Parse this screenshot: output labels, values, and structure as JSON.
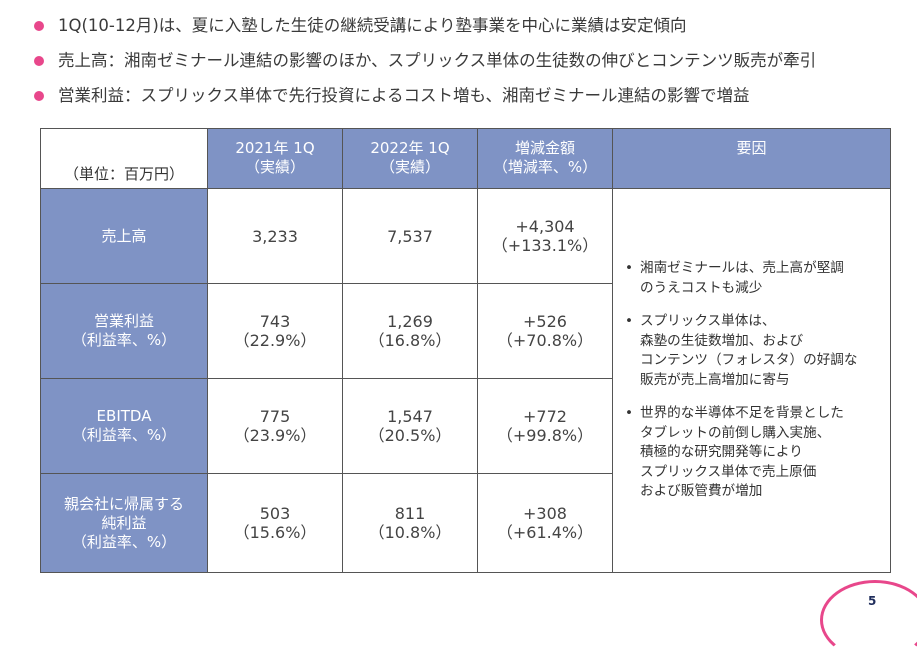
{
  "bullets": [
    "1Q(10-12月)は、夏に入塾した生徒の継続受講により塾事業を中心に業績は安定傾向",
    "売上高：湘南ゼミナール連結の影響のほか、スプリックス単体の生徒数の伸びとコンテンツ販売が牽引",
    "営業利益：スプリックス単体で先行投資によるコスト増も、湘南ゼミナール連結の影響で増益"
  ],
  "table": {
    "unit": "（単位：百万円）",
    "headers": {
      "col1_line1": "2021年 1Q",
      "col1_line2": "（実績）",
      "col2_line1": "2022年 1Q",
      "col2_line2": "（実績）",
      "col3_line1": "増減金額",
      "col3_line2": "（増減率、%）",
      "col4": "要因"
    },
    "rows": [
      {
        "label1": "売上高",
        "label2": "",
        "label3": "",
        "v2021": "3,233",
        "v2021_rate": "",
        "v2022": "7,537",
        "v2022_rate": "",
        "diff": "+4,304",
        "diff_rate": "（+133.1%）"
      },
      {
        "label1": "営業利益",
        "label2": "（利益率、%）",
        "label3": "",
        "v2021": "743",
        "v2021_rate": "（22.9%）",
        "v2022": "1,269",
        "v2022_rate": "（16.8%）",
        "diff": "+526",
        "diff_rate": "（+70.8%）"
      },
      {
        "label1": "EBITDA",
        "label2": "（利益率、%）",
        "label3": "",
        "v2021": "775",
        "v2021_rate": "（23.9%）",
        "v2022": "1,547",
        "v2022_rate": "（20.5%）",
        "diff": "+772",
        "diff_rate": "（+99.8%）"
      },
      {
        "label1": "親会社に帰属する",
        "label2": "純利益",
        "label3": "（利益率、%）",
        "v2021": "503",
        "v2021_rate": "（15.6%）",
        "v2022": "811",
        "v2022_rate": "（10.8%）",
        "diff": "+308",
        "diff_rate": "（+61.4%）"
      }
    ],
    "reasons": [
      "湘南ゼミナールは、売上高が堅調\nのうえコストも減少",
      "スプリックス単体は、\n森塾の生徒数増加、および\nコンテンツ（フォレスタ）の好調な\n販売が売上高増加に寄与",
      "世界的な半導体不足を背景とした\nタブレットの前倒し購入実施、\n積極的な研究開発等により\nスプリックス単体で売上原価\nおよび販管費が増加"
    ],
    "reason_bullet": "•"
  },
  "page_number": "5",
  "colors": {
    "accent_pink": "#e8478b",
    "header_blue": "#7f93c5",
    "border": "#555555"
  }
}
